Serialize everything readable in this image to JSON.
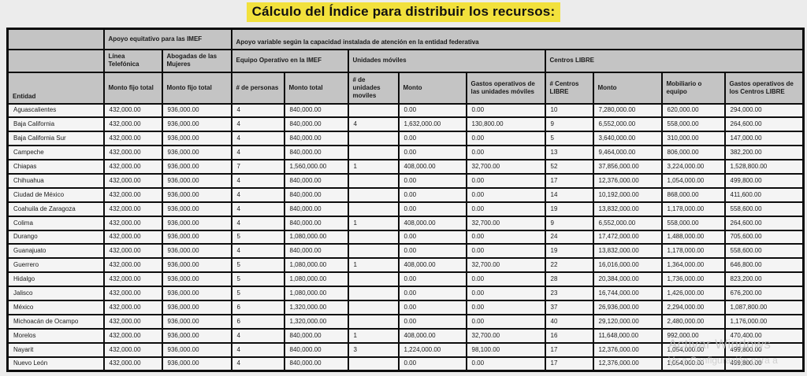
{
  "title": "Cálculo del Índice para distribuir los recursos:",
  "colors": {
    "title_highlight": "#f2e13c",
    "header_bg": "#c4c4c4",
    "row_bg": "#f4f4f4",
    "border": "#0c0c0c",
    "page_bg": "#ececec"
  },
  "table": {
    "groups": {
      "equitativo": "Apoyo equitativo para las IMEF",
      "variable": "Apoyo variable según la capacidad instalada de atención en la entidad federativa"
    },
    "subgroups": {
      "linea": "Línea Telefónica",
      "abogadas": "Abogadas de las Mujeres",
      "equipo": "Equipo Operativo en la IMEF",
      "unidades": "Unidades móviles",
      "centros": "Centros LIBRE"
    },
    "columns": [
      "Entidad",
      "Monto fijo total",
      "Monto fijo total",
      "# de personas",
      "Monto total",
      "# de unidades moviles",
      "Monto",
      "Gastos operativos de las unidades móviles",
      "# Centros LIBRE",
      "Monto",
      "Mobiliario o equipo",
      "Gastos operativos de los Centros LIBRE"
    ],
    "rows": [
      {
        "entidad": "Aguascalientes",
        "values": [
          "432,000.00",
          "936,000.00",
          "4",
          "840,000.00",
          "",
          "0.00",
          "0.00",
          "10",
          "7,280,000.00",
          "620,000.00",
          "294,000.00"
        ]
      },
      {
        "entidad": "Baja California",
        "values": [
          "432,000.00",
          "936,000.00",
          "4",
          "840,000.00",
          "4",
          "1,632,000.00",
          "130,800.00",
          "9",
          "6,552,000.00",
          "558,000.00",
          "264,600.00"
        ]
      },
      {
        "entidad": "Baja California Sur",
        "values": [
          "432,000.00",
          "936,000.00",
          "4",
          "840,000.00",
          "",
          "0.00",
          "0.00",
          "5",
          "3,640,000.00",
          "310,000.00",
          "147,000.00"
        ]
      },
      {
        "entidad": "Campeche",
        "values": [
          "432,000.00",
          "936,000.00",
          "4",
          "840,000.00",
          "",
          "0.00",
          "0.00",
          "13",
          "9,464,000.00",
          "806,000.00",
          "382,200.00"
        ]
      },
      {
        "entidad": "Chiapas",
        "values": [
          "432,000.00",
          "936,000.00",
          "7",
          "1,560,000.00",
          "1",
          "408,000.00",
          "32,700.00",
          "52",
          "37,856,000.00",
          "3,224,000.00",
          "1,528,800.00"
        ]
      },
      {
        "entidad": "Chihuahua",
        "values": [
          "432,000.00",
          "936,000.00",
          "4",
          "840,000.00",
          "",
          "0.00",
          "0.00",
          "17",
          "12,376,000.00",
          "1,054,000.00",
          "499,800.00"
        ]
      },
      {
        "entidad": "Ciudad de México",
        "values": [
          "432,000.00",
          "936,000.00",
          "4",
          "840,000.00",
          "",
          "0.00",
          "0.00",
          "14",
          "10,192,000.00",
          "868,000.00",
          "411,600.00"
        ]
      },
      {
        "entidad": "Coahuila de Zaragoza",
        "values": [
          "432,000.00",
          "936,000.00",
          "4",
          "840,000.00",
          "",
          "0.00",
          "0.00",
          "19",
          "13,832,000.00",
          "1,178,000.00",
          "558,600.00"
        ]
      },
      {
        "entidad": "Colima",
        "values": [
          "432,000.00",
          "936,000.00",
          "4",
          "840,000.00",
          "1",
          "408,000.00",
          "32,700.00",
          "9",
          "6,552,000.00",
          "558,000.00",
          "264,600.00"
        ]
      },
      {
        "entidad": "Durango",
        "values": [
          "432,000.00",
          "936,000.00",
          "5",
          "1,080,000.00",
          "",
          "0.00",
          "0.00",
          "24",
          "17,472,000.00",
          "1,488,000.00",
          "705,600.00"
        ]
      },
      {
        "entidad": "Guanajuato",
        "values": [
          "432,000.00",
          "936,000.00",
          "4",
          "840,000.00",
          "",
          "0.00",
          "0.00",
          "19",
          "13,832,000.00",
          "1,178,000.00",
          "558,600.00"
        ]
      },
      {
        "entidad": "Guerrero",
        "values": [
          "432,000.00",
          "936,000.00",
          "5",
          "1,080,000.00",
          "1",
          "408,000.00",
          "32,700.00",
          "22",
          "16,016,000.00",
          "1,364,000.00",
          "646,800.00"
        ]
      },
      {
        "entidad": "Hidalgo",
        "values": [
          "432,000.00",
          "936,000.00",
          "5",
          "1,080,000.00",
          "",
          "0.00",
          "0.00",
          "28",
          "20,384,000.00",
          "1,736,000.00",
          "823,200.00"
        ]
      },
      {
        "entidad": "Jalisco",
        "values": [
          "432,000.00",
          "936,000.00",
          "5",
          "1,080,000.00",
          "",
          "0.00",
          "0.00",
          "23",
          "16,744,000.00",
          "1,426,000.00",
          "676,200.00"
        ]
      },
      {
        "entidad": "México",
        "values": [
          "432,000.00",
          "936,000.00",
          "6",
          "1,320,000.00",
          "",
          "0.00",
          "0.00",
          "37",
          "26,936,000.00",
          "2,294,000.00",
          "1,087,800.00"
        ]
      },
      {
        "entidad": "Michoacán de Ocampo",
        "values": [
          "432,000.00",
          "936,000.00",
          "6",
          "1,320,000.00",
          "",
          "0.00",
          "0.00",
          "40",
          "29,120,000.00",
          "2,480,000.00",
          "1,176,000.00"
        ]
      },
      {
        "entidad": "Morelos",
        "values": [
          "432,000.00",
          "936,000.00",
          "4",
          "840,000.00",
          "1",
          "408,000.00",
          "32,700.00",
          "16",
          "11,648,000.00",
          "992,000.00",
          "470,400.00"
        ]
      },
      {
        "entidad": "Nayarit",
        "values": [
          "432,000.00",
          "936,000.00",
          "4",
          "840,000.00",
          "3",
          "1,224,000.00",
          "98,100.00",
          "17",
          "12,376,000.00",
          "1,054,000.00",
          "499,800.00"
        ]
      },
      {
        "entidad": "Nuevo León",
        "values": [
          "432,000.00",
          "936,000.00",
          "4",
          "840,000.00",
          "",
          "0.00",
          "0.00",
          "17",
          "12,376,000.00",
          "1,054,000.00",
          "499,800.00"
        ]
      }
    ]
  },
  "watermark": {
    "line1": "Activar Windows",
    "line2": "Ve a Configuración para a"
  }
}
